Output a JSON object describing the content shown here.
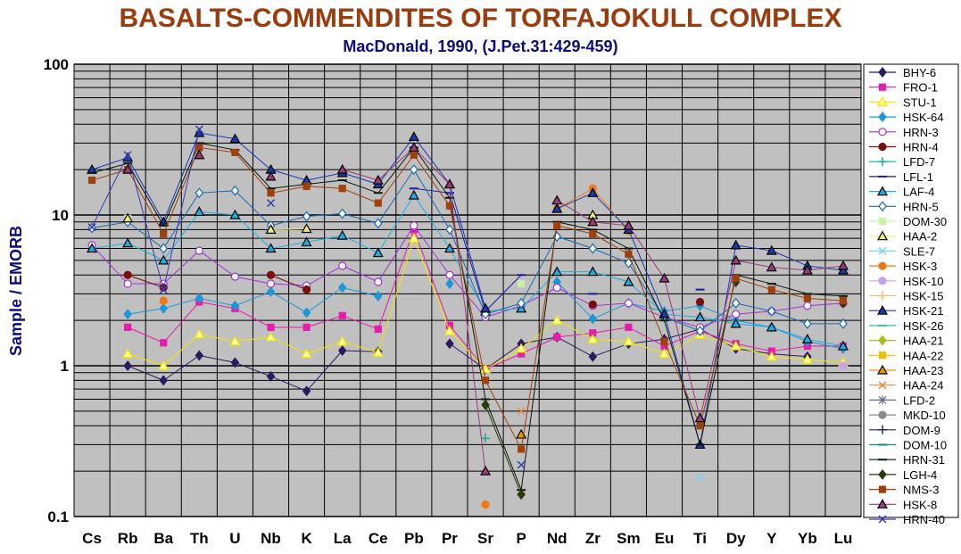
{
  "title": "BASALTS-COMMENDITES OF TORFAJOKULL COMPLEX",
  "subtitle": "MacDonald, 1990, (J.Pet.31:429-459)",
  "chart_data": {
    "type": "line",
    "yscale": "log",
    "ylabel": "Sample / EMORB",
    "ylim": [
      0.1,
      100
    ],
    "yticks": [
      "0.1",
      "1",
      "10",
      "100"
    ],
    "grid": true,
    "legend_position": "right",
    "categories": [
      "Cs",
      "Rb",
      "Ba",
      "Th",
      "U",
      "Nb",
      "K",
      "La",
      "Ce",
      "Pb",
      "Pr",
      "Sr",
      "P",
      "Nd",
      "Zr",
      "Sm",
      "Eu",
      "Ti",
      "Dy",
      "Y",
      "Yb",
      "Lu"
    ],
    "series": [
      {
        "name": "BHY-6",
        "color": "#2b1a5e",
        "marker": "diamond",
        "fill": true,
        "values": [
          null,
          1.0,
          0.8,
          1.17,
          1.05,
          0.85,
          0.68,
          1.26,
          1.24,
          null,
          1.4,
          0.95,
          1.4,
          1.55,
          1.15,
          1.4,
          1.5,
          1.75,
          1.3,
          1.2,
          1.15,
          null
        ]
      },
      {
        "name": "FRO-1",
        "color": "#e61caa",
        "marker": "square",
        "fill": true,
        "values": [
          null,
          1.8,
          1.42,
          2.65,
          2.4,
          1.8,
          1.8,
          2.15,
          1.75,
          8.0,
          1.85,
          0.95,
          1.2,
          1.55,
          1.65,
          1.8,
          1.35,
          1.7,
          1.4,
          1.25,
          1.35,
          1.35
        ]
      },
      {
        "name": "STU-1",
        "color": "#f2e600",
        "marker": "triangle",
        "fill": false,
        "values": [
          null,
          1.2,
          1.0,
          1.62,
          1.45,
          1.55,
          1.2,
          1.45,
          1.22,
          7.0,
          1.7,
          0.95,
          1.3,
          2.0,
          1.5,
          1.45,
          1.2,
          1.6,
          1.35,
          1.15,
          1.1,
          1.05
        ]
      },
      {
        "name": "HSK-64",
        "color": "#1a98d8",
        "marker": "diamond",
        "fill": true,
        "values": [
          null,
          2.2,
          2.4,
          2.8,
          2.5,
          3.1,
          2.25,
          3.3,
          2.9,
          null,
          3.5,
          null,
          null,
          3.6,
          2.05,
          2.6,
          2.3,
          2.5,
          2.0,
          1.8,
          1.45,
          1.3
        ]
      },
      {
        "name": "HRN-3",
        "color": "#a032d4",
        "marker": "circle",
        "fill": false,
        "values": [
          6.3,
          3.5,
          3.5,
          5.8,
          3.9,
          3.5,
          3.4,
          4.6,
          3.6,
          8.5,
          4.0,
          2.1,
          2.5,
          3.3,
          2.5,
          2.6,
          2.1,
          1.8,
          2.2,
          2.3,
          2.5,
          2.6
        ]
      },
      {
        "name": "HRN-4",
        "color": "#7a0e0e",
        "marker": "circle",
        "fill": true,
        "values": [
          null,
          4.0,
          3.3,
          null,
          null,
          4.0,
          3.2,
          null,
          null,
          null,
          null,
          null,
          null,
          null,
          2.55,
          null,
          null,
          2.65,
          null,
          null,
          null,
          null
        ]
      },
      {
        "name": "LFD-7",
        "color": "#1aaa9a",
        "marker": "plus",
        "fill": false,
        "values": [
          null,
          null,
          null,
          null,
          null,
          null,
          null,
          null,
          null,
          null,
          null,
          0.33,
          null,
          null,
          null,
          null,
          null,
          null,
          null,
          null,
          null,
          null
        ]
      },
      {
        "name": "LFL-1",
        "color": "#1c1c9e",
        "marker": "dash",
        "fill": false,
        "values": [
          null,
          null,
          null,
          null,
          null,
          null,
          null,
          null,
          null,
          15.0,
          14.0,
          2.3,
          4.0,
          null,
          3.0,
          null,
          null,
          3.2,
          null,
          null,
          null,
          null
        ]
      },
      {
        "name": "LAF-4",
        "color": "#1aaee0",
        "marker": "triangle",
        "fill": true,
        "values": [
          6.0,
          6.5,
          5.0,
          10.5,
          10.0,
          6.0,
          6.6,
          7.3,
          5.6,
          13.5,
          6.0,
          2.3,
          2.4,
          4.2,
          4.2,
          3.6,
          2.2,
          2.1,
          1.9,
          1.8,
          1.5,
          1.35
        ]
      },
      {
        "name": "HRN-5",
        "color": "#1a6ab0",
        "marker": "diamond",
        "fill": false,
        "values": [
          8.2,
          9.0,
          6.0,
          14.0,
          14.5,
          8.5,
          9.8,
          10.2,
          8.8,
          20.0,
          8.0,
          2.2,
          2.6,
          7.2,
          6.0,
          4.8,
          2.1,
          1.7,
          2.6,
          2.3,
          1.9,
          1.9
        ]
      },
      {
        "name": "DOM-30",
        "color": "#c8f0a8",
        "marker": "square",
        "fill": true,
        "values": [
          null,
          9.5,
          null,
          null,
          null,
          null,
          null,
          null,
          null,
          null,
          null,
          null,
          3.5,
          null,
          null,
          null,
          null,
          null,
          null,
          null,
          null,
          null
        ]
      },
      {
        "name": "HAA-2",
        "color": "#f0f078",
        "marker": "triangle",
        "fill": true,
        "values": [
          null,
          9.5,
          null,
          null,
          null,
          8.0,
          8.1,
          null,
          null,
          null,
          null,
          null,
          null,
          null,
          10.0,
          null,
          null,
          null,
          null,
          null,
          null,
          null
        ]
      },
      {
        "name": "SLE-7",
        "color": "#7ad2f0",
        "marker": "x",
        "fill": false,
        "values": [
          null,
          null,
          null,
          null,
          null,
          null,
          null,
          null,
          null,
          null,
          null,
          null,
          null,
          null,
          null,
          null,
          null,
          0.18,
          null,
          null,
          null,
          null
        ]
      },
      {
        "name": "HSK-3",
        "color": "#f07818",
        "marker": "circle",
        "fill": true,
        "values": [
          null,
          null,
          2.7,
          null,
          null,
          null,
          null,
          null,
          null,
          null,
          null,
          0.12,
          null,
          11.0,
          15.0,
          7.8,
          null,
          null,
          null,
          null,
          null,
          null
        ]
      },
      {
        "name": "HSK-10",
        "color": "#c8a0f0",
        "marker": "circle",
        "fill": true,
        "values": [
          null,
          null,
          null,
          null,
          null,
          null,
          null,
          null,
          null,
          null,
          null,
          null,
          null,
          null,
          null,
          null,
          null,
          null,
          null,
          null,
          null,
          1.0
        ]
      },
      {
        "name": "HSK-15",
        "color": "#f0c078",
        "marker": "plus",
        "fill": false,
        "values": [
          null,
          null,
          null,
          null,
          null,
          null,
          null,
          null,
          null,
          null,
          null,
          null,
          null,
          null,
          null,
          null,
          null,
          null,
          null,
          null,
          null,
          null
        ]
      },
      {
        "name": "HSK-21",
        "color": "#1a3ab0",
        "marker": "triangle",
        "fill": true,
        "values": [
          20.0,
          24.0,
          9.0,
          35.0,
          32.0,
          20.0,
          17.0,
          19.0,
          16.0,
          33.0,
          16.0,
          2.4,
          null,
          11.0,
          14.0,
          8.0,
          2.2,
          0.3,
          6.3,
          5.8,
          4.6,
          4.3
        ]
      },
      {
        "name": "HSK-26",
        "color": "#30c0b0",
        "marker": "dash",
        "fill": false,
        "values": [
          null,
          null,
          null,
          null,
          null,
          null,
          null,
          null,
          null,
          null,
          null,
          null,
          null,
          null,
          null,
          null,
          null,
          null,
          null,
          null,
          null,
          null
        ]
      },
      {
        "name": "HAA-21",
        "color": "#a8c01a",
        "marker": "diamond",
        "fill": true,
        "values": [
          null,
          null,
          null,
          null,
          null,
          null,
          null,
          null,
          null,
          null,
          null,
          null,
          null,
          null,
          null,
          null,
          null,
          null,
          null,
          null,
          null,
          null
        ]
      },
      {
        "name": "HAA-22",
        "color": "#f0c000",
        "marker": "square",
        "fill": true,
        "values": [
          null,
          null,
          null,
          null,
          null,
          null,
          null,
          null,
          null,
          null,
          null,
          null,
          null,
          null,
          null,
          null,
          null,
          null,
          null,
          null,
          null,
          null
        ]
      },
      {
        "name": "HAA-23",
        "color": "#f09800",
        "marker": "triangle",
        "fill": true,
        "values": [
          null,
          null,
          null,
          null,
          null,
          null,
          null,
          null,
          null,
          null,
          null,
          null,
          0.35,
          null,
          null,
          null,
          null,
          null,
          null,
          null,
          null,
          null
        ]
      },
      {
        "name": "HAA-24",
        "color": "#f08a3a",
        "marker": "x",
        "fill": false,
        "values": [
          null,
          null,
          null,
          null,
          null,
          null,
          null,
          null,
          null,
          null,
          null,
          null,
          0.5,
          null,
          null,
          null,
          null,
          null,
          null,
          null,
          null,
          null
        ]
      },
      {
        "name": "LFD-2",
        "color": "#6a6a8a",
        "marker": "star",
        "fill": false,
        "values": [
          null,
          null,
          null,
          null,
          null,
          null,
          null,
          null,
          null,
          null,
          null,
          null,
          null,
          null,
          null,
          null,
          null,
          null,
          null,
          null,
          null,
          null
        ]
      },
      {
        "name": "MKD-10",
        "color": "#8a8a8a",
        "marker": "circle",
        "fill": true,
        "values": [
          null,
          null,
          null,
          null,
          null,
          null,
          null,
          null,
          null,
          null,
          null,
          null,
          null,
          null,
          null,
          null,
          null,
          null,
          null,
          null,
          null,
          null
        ]
      },
      {
        "name": "DOM-9",
        "color": "#1a2a6a",
        "marker": "plus",
        "fill": false,
        "values": [
          null,
          null,
          null,
          null,
          null,
          null,
          null,
          null,
          null,
          null,
          null,
          null,
          null,
          null,
          null,
          null,
          null,
          null,
          null,
          null,
          null,
          null
        ]
      },
      {
        "name": "DOM-10",
        "color": "#1a8a7a",
        "marker": "dash",
        "fill": false,
        "values": [
          null,
          null,
          null,
          null,
          null,
          null,
          null,
          null,
          null,
          null,
          null,
          null,
          null,
          null,
          null,
          null,
          null,
          null,
          null,
          null,
          null,
          null
        ]
      },
      {
        "name": "HRN-31",
        "color": "#0a1a0a",
        "marker": "dash",
        "fill": false,
        "values": [
          19.0,
          22.0,
          8.5,
          30.0,
          27.0,
          15.0,
          16.0,
          17.0,
          14.0,
          28.0,
          13.0,
          0.6,
          0.15,
          9.0,
          8.0,
          6.0,
          2.0,
          0.3,
          4.0,
          3.5,
          3.0,
          2.9
        ]
      },
      {
        "name": "LGH-4",
        "color": "#2a3a0a",
        "marker": "diamond",
        "fill": true,
        "values": [
          null,
          null,
          null,
          null,
          null,
          null,
          null,
          null,
          null,
          null,
          null,
          0.55,
          0.14,
          null,
          null,
          null,
          null,
          null,
          3.6,
          null,
          null,
          2.6
        ]
      },
      {
        "name": "NMS-3",
        "color": "#a0400a",
        "marker": "square",
        "fill": true,
        "values": [
          17.0,
          20.0,
          7.5,
          28.0,
          26.0,
          14.0,
          15.5,
          15.0,
          12.0,
          25.0,
          11.5,
          0.8,
          0.28,
          8.5,
          7.5,
          5.5,
          1.45,
          0.4,
          3.8,
          3.2,
          2.8,
          2.7
        ]
      },
      {
        "name": "HSK-8",
        "color": "#9a3a7a",
        "marker": "triangle",
        "fill": true,
        "values": [
          null,
          20.0,
          null,
          25.0,
          null,
          18.0,
          null,
          20.0,
          17.0,
          28.0,
          16.0,
          0.2,
          null,
          12.5,
          9.0,
          8.5,
          3.8,
          0.45,
          5.0,
          4.5,
          4.3,
          4.6
        ]
      },
      {
        "name": "HRN-40",
        "color": "#3a3ab0",
        "marker": "x",
        "fill": false,
        "values": [
          8.3,
          25.0,
          3.2,
          37.0,
          null,
          12.0,
          null,
          null,
          null,
          null,
          null,
          null,
          0.22,
          null,
          null,
          null,
          null,
          null,
          null,
          null,
          null,
          null
        ]
      }
    ]
  }
}
